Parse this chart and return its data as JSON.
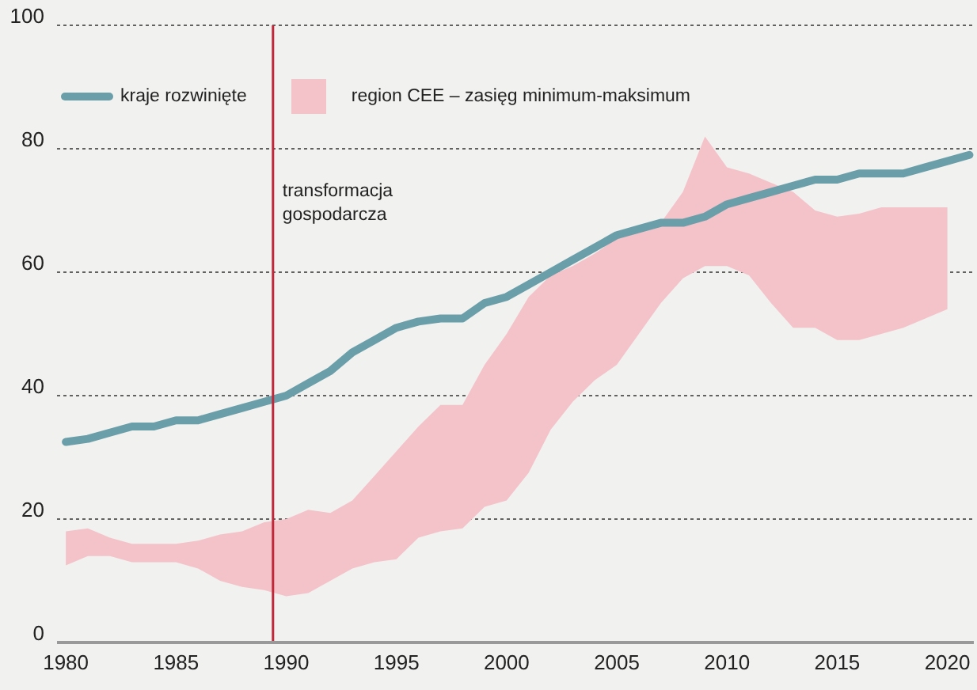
{
  "chart_data": {
    "type": "line",
    "xlim": [
      1979.6,
      2021.2
    ],
    "xticks": [
      1980,
      1985,
      1990,
      1995,
      2000,
      2005,
      2010,
      2015,
      2020
    ],
    "ylim": [
      0,
      100
    ],
    "yticks": [
      0,
      20,
      40,
      60,
      80,
      100
    ],
    "grid": "y",
    "legend": "top left",
    "marker": "none",
    "line_style": "solid",
    "ref_lines": [
      {
        "axis": "x",
        "value": 1989.4,
        "label": "transformacja gospodarcza",
        "color": "#c0283a"
      }
    ],
    "series": [
      {
        "name": "kraje rozwinięte",
        "color": "#6a9ea9",
        "x": [
          1980,
          1981,
          1982,
          1983,
          1984,
          1985,
          1986,
          1987,
          1988,
          1989,
          1990,
          1991,
          1992,
          1993,
          1994,
          1995,
          1996,
          1997,
          1998,
          1999,
          2000,
          2001,
          2002,
          2003,
          2004,
          2005,
          2006,
          2007,
          2008,
          2009,
          2010,
          2011,
          2012,
          2013,
          2014,
          2015,
          2016,
          2017,
          2018,
          2019,
          2020,
          2021
        ],
        "values": [
          32.5,
          33,
          34,
          35,
          35,
          36,
          36,
          37,
          38,
          39,
          40,
          42,
          44,
          47,
          49,
          51,
          52,
          52.5,
          52.5,
          55,
          56,
          58,
          60,
          62,
          64,
          66,
          67,
          68,
          68,
          69,
          71,
          72,
          73,
          74,
          75,
          75,
          76,
          76,
          76,
          77,
          78,
          79
        ]
      },
      {
        "name": "region CEE – zasięg minimum-maksimum",
        "type": "area",
        "color": "#f4c3c9",
        "x": [
          1980,
          1981,
          1982,
          1983,
          1984,
          1985,
          1986,
          1987,
          1988,
          1989,
          1990,
          1991,
          1992,
          1993,
          1994,
          1995,
          1996,
          1997,
          1998,
          1999,
          2000,
          2001,
          2002,
          2003,
          2004,
          2005,
          2006,
          2007,
          2008,
          2009,
          2010,
          2011,
          2012,
          2013,
          2014,
          2015,
          2016,
          2017,
          2018,
          2019,
          2020
        ],
        "values": [
          null,
          null,
          null,
          null,
          null,
          null,
          null,
          null,
          null,
          null,
          null,
          null,
          null,
          null,
          null,
          null,
          null,
          null,
          null,
          null,
          null,
          null,
          null,
          null,
          null,
          null,
          null,
          null,
          null,
          null,
          null,
          null,
          null,
          null,
          null,
          null,
          null,
          null,
          null,
          null,
          null
        ],
        "lower": [
          12.5,
          14,
          14,
          13,
          13,
          13,
          12,
          10,
          9,
          8.5,
          7.5,
          8,
          10,
          12,
          13,
          13.5,
          17,
          18,
          18.5,
          22,
          23,
          27.5,
          34.5,
          39,
          42.5,
          45,
          50,
          55,
          59,
          61,
          61,
          59.5,
          55,
          51,
          51,
          49,
          49,
          50,
          51,
          52.5,
          54
        ],
        "upper": [
          18,
          18.5,
          17,
          16,
          16,
          16,
          16.5,
          17.5,
          18,
          19.5,
          20,
          21.5,
          21,
          23,
          27,
          31,
          35,
          38.5,
          38.5,
          45,
          50,
          56,
          59.5,
          61,
          63,
          65.5,
          66.5,
          68,
          73,
          82,
          77,
          76,
          74.5,
          73,
          70,
          69,
          69.5,
          70.5,
          70.5,
          70.5,
          70.5
        ]
      }
    ]
  }
}
